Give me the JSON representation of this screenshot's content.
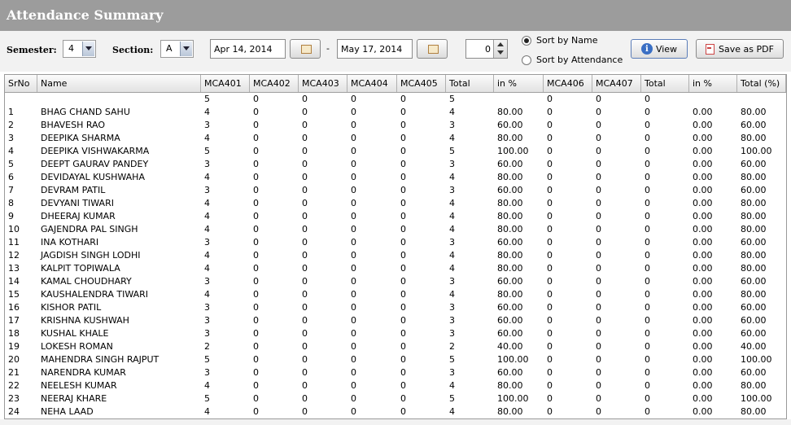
{
  "window": {
    "title": "Attendance Summary"
  },
  "toolbar": {
    "semester_label": "Semester:",
    "semester_value": "4",
    "section_label": "Section:",
    "section_value": "A",
    "from_date": "Apr 14, 2014",
    "date_separator": "-",
    "to_date": "May 17, 2014",
    "spinner_value": "0",
    "sort_by_name": "Sort by Name",
    "sort_by_attendance": "Sort by Attendance",
    "sort_selected": "name",
    "view_label": "View",
    "save_pdf_label": "Save as PDF"
  },
  "table": {
    "columns": [
      "SrNo",
      "Name",
      "MCA401",
      "MCA402",
      "MCA403",
      "MCA404",
      "MCA405",
      "Total",
      "in %",
      "MCA406",
      "MCA407",
      "Total",
      "in %",
      "Total (%)"
    ],
    "rows": [
      [
        "",
        "",
        "5",
        "0",
        "0",
        "0",
        "0",
        "5",
        "",
        "0",
        "0",
        "0",
        "",
        ""
      ],
      [
        "1",
        "BHAG CHAND SAHU",
        "4",
        "0",
        "0",
        "0",
        "0",
        "4",
        "80.00",
        "0",
        "0",
        "0",
        "0.00",
        "80.00"
      ],
      [
        "2",
        "BHAVESH RAO",
        "3",
        "0",
        "0",
        "0",
        "0",
        "3",
        "60.00",
        "0",
        "0",
        "0",
        "0.00",
        "60.00"
      ],
      [
        "3",
        "DEEPIKA SHARMA",
        "4",
        "0",
        "0",
        "0",
        "0",
        "4",
        "80.00",
        "0",
        "0",
        "0",
        "0.00",
        "80.00"
      ],
      [
        "4",
        "DEEPIKA VISHWAKARMA",
        "5",
        "0",
        "0",
        "0",
        "0",
        "5",
        "100.00",
        "0",
        "0",
        "0",
        "0.00",
        "100.00"
      ],
      [
        "5",
        "DEEPT GAURAV PANDEY",
        "3",
        "0",
        "0",
        "0",
        "0",
        "3",
        "60.00",
        "0",
        "0",
        "0",
        "0.00",
        "60.00"
      ],
      [
        "6",
        "DEVIDAYAL KUSHWAHA",
        "4",
        "0",
        "0",
        "0",
        "0",
        "4",
        "80.00",
        "0",
        "0",
        "0",
        "0.00",
        "80.00"
      ],
      [
        "7",
        "DEVRAM PATIL",
        "3",
        "0",
        "0",
        "0",
        "0",
        "3",
        "60.00",
        "0",
        "0",
        "0",
        "0.00",
        "60.00"
      ],
      [
        "8",
        "DEVYANI TIWARI",
        "4",
        "0",
        "0",
        "0",
        "0",
        "4",
        "80.00",
        "0",
        "0",
        "0",
        "0.00",
        "80.00"
      ],
      [
        "9",
        "DHEERAJ KUMAR",
        "4",
        "0",
        "0",
        "0",
        "0",
        "4",
        "80.00",
        "0",
        "0",
        "0",
        "0.00",
        "80.00"
      ],
      [
        "10",
        "GAJENDRA PAL SINGH",
        "4",
        "0",
        "0",
        "0",
        "0",
        "4",
        "80.00",
        "0",
        "0",
        "0",
        "0.00",
        "80.00"
      ],
      [
        "11",
        "INA KOTHARI",
        "3",
        "0",
        "0",
        "0",
        "0",
        "3",
        "60.00",
        "0",
        "0",
        "0",
        "0.00",
        "60.00"
      ],
      [
        "12",
        "JAGDISH SINGH LODHI",
        "4",
        "0",
        "0",
        "0",
        "0",
        "4",
        "80.00",
        "0",
        "0",
        "0",
        "0.00",
        "80.00"
      ],
      [
        "13",
        "KALPIT TOPIWALA",
        "4",
        "0",
        "0",
        "0",
        "0",
        "4",
        "80.00",
        "0",
        "0",
        "0",
        "0.00",
        "80.00"
      ],
      [
        "14",
        "KAMAL CHOUDHARY",
        "3",
        "0",
        "0",
        "0",
        "0",
        "3",
        "60.00",
        "0",
        "0",
        "0",
        "0.00",
        "60.00"
      ],
      [
        "15",
        "KAUSHALENDRA TIWARI",
        "4",
        "0",
        "0",
        "0",
        "0",
        "4",
        "80.00",
        "0",
        "0",
        "0",
        "0.00",
        "80.00"
      ],
      [
        "16",
        "KISHOR PATIL",
        "3",
        "0",
        "0",
        "0",
        "0",
        "3",
        "60.00",
        "0",
        "0",
        "0",
        "0.00",
        "60.00"
      ],
      [
        "17",
        "KRISHNA KUSHWAH",
        "3",
        "0",
        "0",
        "0",
        "0",
        "3",
        "60.00",
        "0",
        "0",
        "0",
        "0.00",
        "60.00"
      ],
      [
        "18",
        "KUSHAL KHALE",
        "3",
        "0",
        "0",
        "0",
        "0",
        "3",
        "60.00",
        "0",
        "0",
        "0",
        "0.00",
        "60.00"
      ],
      [
        "19",
        "LOKESH ROMAN",
        "2",
        "0",
        "0",
        "0",
        "0",
        "2",
        "40.00",
        "0",
        "0",
        "0",
        "0.00",
        "40.00"
      ],
      [
        "20",
        "MAHENDRA SINGH RAJPUT",
        "5",
        "0",
        "0",
        "0",
        "0",
        "5",
        "100.00",
        "0",
        "0",
        "0",
        "0.00",
        "100.00"
      ],
      [
        "21",
        "NARENDRA KUMAR",
        "3",
        "0",
        "0",
        "0",
        "0",
        "3",
        "60.00",
        "0",
        "0",
        "0",
        "0.00",
        "60.00"
      ],
      [
        "22",
        "NEELESH KUMAR",
        "4",
        "0",
        "0",
        "0",
        "0",
        "4",
        "80.00",
        "0",
        "0",
        "0",
        "0.00",
        "80.00"
      ],
      [
        "23",
        "NEERAJ KHARE",
        "5",
        "0",
        "0",
        "0",
        "0",
        "5",
        "100.00",
        "0",
        "0",
        "0",
        "0.00",
        "100.00"
      ],
      [
        "24",
        "NEHA LAAD",
        "4",
        "0",
        "0",
        "0",
        "0",
        "4",
        "80.00",
        "0",
        "0",
        "0",
        "0.00",
        "80.00"
      ]
    ]
  },
  "colors": {
    "title_bar": "#9c9c9c",
    "toolbar_bg": "#f2f2f2",
    "info_icon": "#3a6fc4"
  }
}
